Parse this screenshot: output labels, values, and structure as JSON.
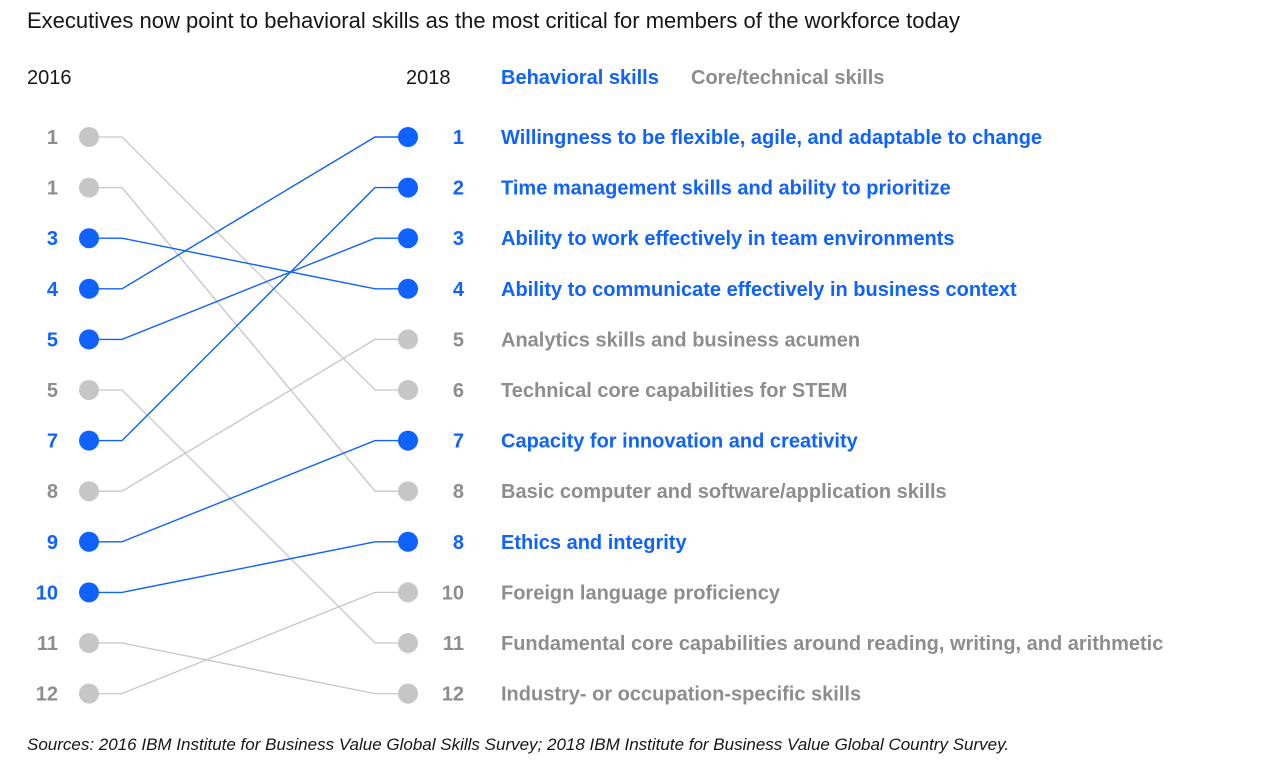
{
  "title": "Executives now point to behavioral skills as the most critical for members of the workforce today",
  "legend": {
    "behavioral_label": "Behavioral skills",
    "core_label": "Core/technical skills"
  },
  "colors": {
    "behavioral": "#0f62fe",
    "core_text": "#8d8d8d",
    "core_dot": "#c6c6c6",
    "core_line": "#c6c6c6"
  },
  "source": "Sources: 2016 IBM Institute for Business Value Global Skills Survey; 2018 IBM Institute for Business Value Global Country Survey.",
  "chart_data": {
    "type": "slope",
    "x_labels": [
      "2016",
      "2018"
    ],
    "left_ranks": [
      {
        "rank": "1",
        "category": "core",
        "skill_index": 5
      },
      {
        "rank": "1",
        "category": "core",
        "skill_index": 7
      },
      {
        "rank": "3",
        "category": "behavioral",
        "skill_index": 3
      },
      {
        "rank": "4",
        "category": "behavioral",
        "skill_index": 0
      },
      {
        "rank": "5",
        "category": "behavioral",
        "skill_index": 2
      },
      {
        "rank": "5",
        "category": "core",
        "skill_index": 10
      },
      {
        "rank": "7",
        "category": "behavioral",
        "skill_index": 1
      },
      {
        "rank": "8",
        "category": "core",
        "skill_index": 4
      },
      {
        "rank": "9",
        "category": "behavioral",
        "skill_index": 6
      },
      {
        "rank": "10",
        "category": "behavioral",
        "skill_index": 8
      },
      {
        "rank": "11",
        "category": "core",
        "skill_index": 11
      },
      {
        "rank": "12",
        "category": "core",
        "skill_index": 9
      }
    ],
    "skills": [
      {
        "rank_2018": "1",
        "label": "Willingness to be flexible, agile, and adaptable to change",
        "category": "behavioral"
      },
      {
        "rank_2018": "2",
        "label": "Time management skills and ability to prioritize",
        "category": "behavioral"
      },
      {
        "rank_2018": "3",
        "label": "Ability to work effectively in team environments",
        "category": "behavioral"
      },
      {
        "rank_2018": "4",
        "label": "Ability to communicate effectively in business context",
        "category": "behavioral"
      },
      {
        "rank_2018": "5",
        "label": "Analytics skills and business acumen",
        "category": "core"
      },
      {
        "rank_2018": "6",
        "label": "Technical core capabilities for STEM",
        "category": "core"
      },
      {
        "rank_2018": "7",
        "label": "Capacity for innovation and creativity",
        "category": "behavioral"
      },
      {
        "rank_2018": "8",
        "label": "Basic computer and software/application skills",
        "category": "core"
      },
      {
        "rank_2018": "8",
        "label": "Ethics and integrity",
        "category": "behavioral"
      },
      {
        "rank_2018": "10",
        "label": "Foreign language proficiency",
        "category": "core"
      },
      {
        "rank_2018": "11",
        "label": "Fundamental core capabilities around reading, writing, and arithmetic",
        "category": "core"
      },
      {
        "rank_2018": "12",
        "label": "Industry- or occupation-specific skills",
        "category": "core"
      }
    ]
  }
}
